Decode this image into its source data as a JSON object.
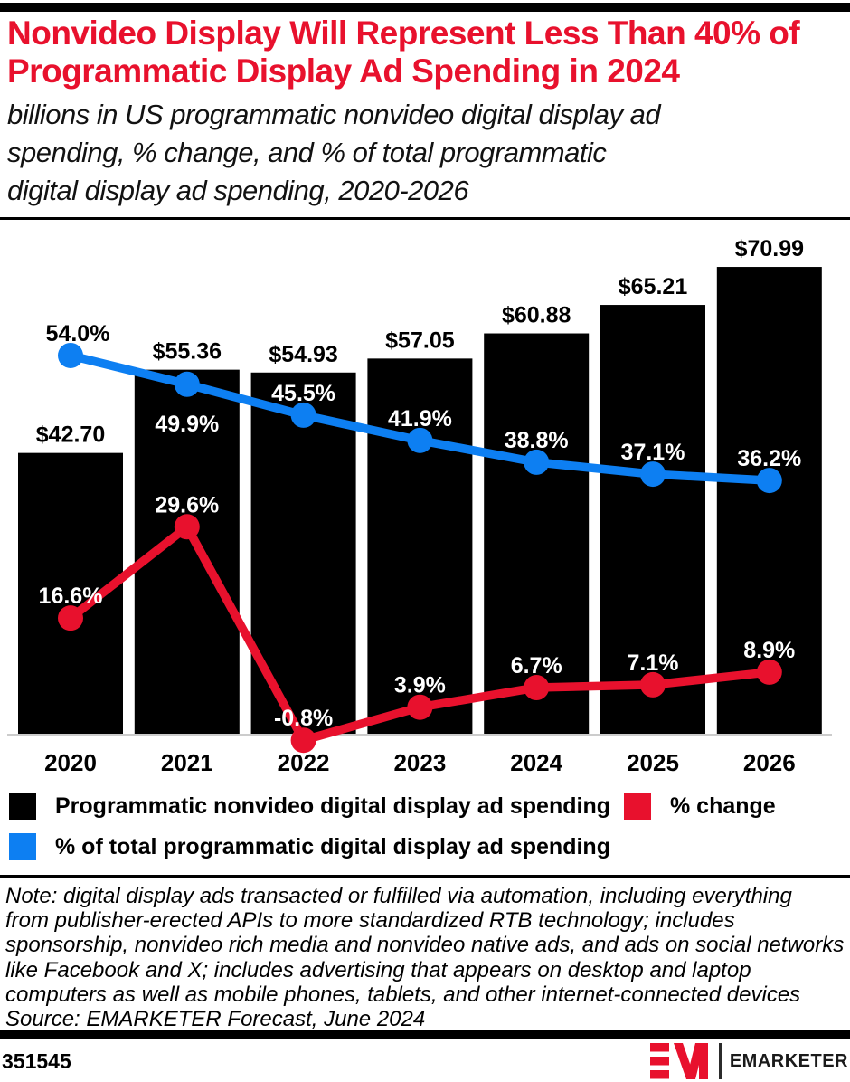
{
  "header": {
    "title_lines": [
      "Nonvideo Display Will Represent Less Than 40% of",
      "Programmatic Display Ad Spending in 2024"
    ],
    "subtitle_lines": [
      "billions in US programmatic nonvideo digital display ad",
      "spending, % change, and % of total programmatic",
      "digital display ad spending, 2020-2026"
    ]
  },
  "chart_data": {
    "type": "bar",
    "subtype": "combo-bar-line",
    "categories": [
      "2020",
      "2021",
      "2022",
      "2023",
      "2024",
      "2025",
      "2026"
    ],
    "series": [
      {
        "name": "Programmatic nonvideo digital display ad spending",
        "render": "bar",
        "unit": "billions USD",
        "color": "#000000",
        "values": [
          42.7,
          55.36,
          54.93,
          57.05,
          60.88,
          65.21,
          70.99
        ],
        "labels": [
          "$42.70",
          "$55.36",
          "$54.93",
          "$57.05",
          "$60.88",
          "$65.21",
          "$70.99"
        ]
      },
      {
        "name": "% change",
        "render": "line",
        "unit": "%",
        "color": "#e8112d",
        "values": [
          16.6,
          29.6,
          -0.8,
          3.9,
          6.7,
          7.1,
          8.9
        ],
        "labels": [
          "16.6%",
          "29.6%",
          "-0.8%",
          "3.9%",
          "6.7%",
          "7.1%",
          "8.9%"
        ]
      },
      {
        "name": "% of total programmatic digital display ad spending",
        "render": "line",
        "unit": "%",
        "color": "#0d7ff2",
        "values": [
          54.0,
          49.9,
          45.5,
          41.9,
          38.8,
          37.1,
          36.2
        ],
        "labels": [
          "54.0%",
          "49.9%",
          "45.5%",
          "41.9%",
          "38.8%",
          "37.1%",
          "36.2%"
        ]
      }
    ],
    "grid": false,
    "legend_position": "bottom",
    "axes_visible": false
  },
  "legend": {
    "items": [
      {
        "label": "Programmatic nonvideo digital display ad spending",
        "color": "#000000"
      },
      {
        "label": "% change",
        "color": "#e8112d"
      },
      {
        "label": "% of total programmatic digital display ad spending",
        "color": "#0d7ff2"
      }
    ]
  },
  "note": {
    "lines": [
      "Note: digital display ads transacted or fulfilled via automation, including everything",
      "from publisher-erected APIs to more standardized RTB technology; includes",
      "sponsorship, nonvideo rich media and nonvideo native ads, and ads on social networks",
      "like Facebook and X; includes advertising that appears on desktop and laptop",
      "computers as well as mobile phones, tablets, and other internet-connected devices"
    ],
    "source": "Source: EMARKETER Forecast, June 2024"
  },
  "footer": {
    "chart_id": "351545",
    "brand": "EMARKETER"
  },
  "colors": {
    "brand_red": "#e8112d",
    "line_blue": "#0d7ff2",
    "bar_black": "#000000",
    "axis_gray": "#cccccc"
  }
}
